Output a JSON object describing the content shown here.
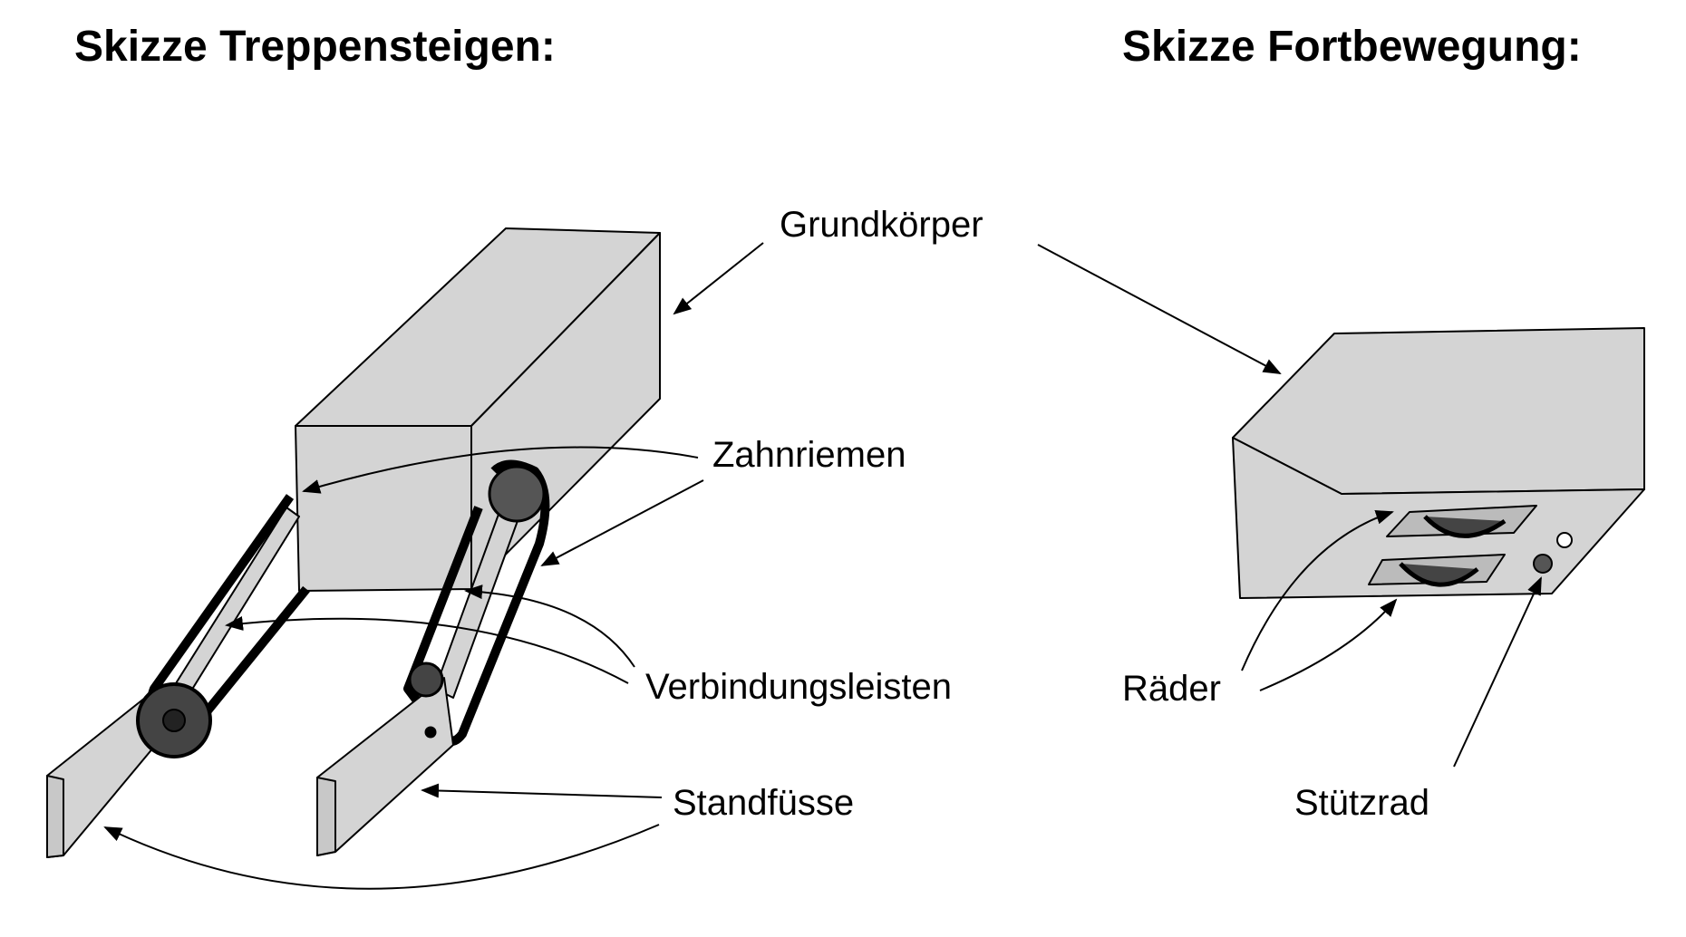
{
  "titles": {
    "left": "Skizze Treppensteigen:",
    "right": "Skizze Fortbewegung:"
  },
  "labels": {
    "grundkoerper": "Grundkörper",
    "zahnriemen": "Zahnriemen",
    "verbindungsleisten": "Verbindungsleisten",
    "standfuesse": "Standfüsse",
    "raeder": "Räder",
    "stuetzrad": "Stützrad"
  },
  "colors": {
    "body_fill": "#d4d4d4",
    "belt": "#000000",
    "wheel": "#444444",
    "outline": "#000000"
  }
}
